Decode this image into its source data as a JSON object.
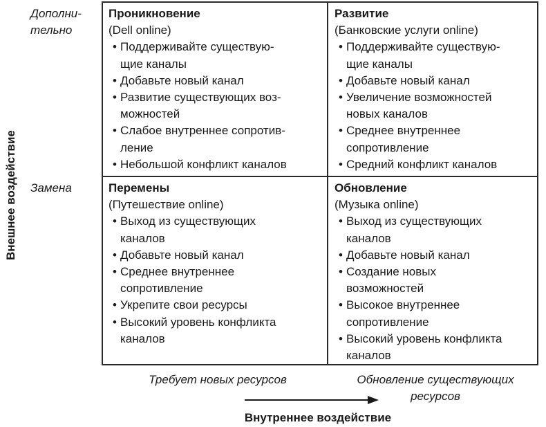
{
  "y_axis_label": "Внешнее воздействие",
  "x_axis_label": "Внутреннее воздействие",
  "row_labels": [
    {
      "lines": [
        "Дополни-",
        "тельно"
      ]
    },
    {
      "lines": [
        "Замена"
      ]
    }
  ],
  "column_labels": [
    {
      "lines": [
        "Требует новых ресурсов"
      ]
    },
    {
      "lines": [
        "Обновление существующих",
        "ресурсов"
      ]
    }
  ],
  "cells": [
    {
      "title": "Проникновение",
      "subtitle": "(Dell online)",
      "items": [
        [
          "Поддерживайте существую-",
          "щие каналы"
        ],
        [
          "Добавьте новый канал"
        ],
        [
          "Развитие существующих воз-",
          "можностей"
        ],
        [
          "Слабое внутреннее сопротив-",
          "ление"
        ],
        [
          "Небольшой конфликт каналов"
        ]
      ]
    },
    {
      "title": "Развитие",
      "subtitle": "(Банковские услуги online)",
      "items": [
        [
          "Поддерживайте существую-",
          "щие каналы"
        ],
        [
          "Добавьте новый канал"
        ],
        [
          "Увеличение возможностей",
          "новых каналов"
        ],
        [
          "Среднее внутреннее",
          "сопротивление"
        ],
        [
          "Средний конфликт каналов"
        ]
      ]
    },
    {
      "title": "Перемены",
      "subtitle": "(Путешествие online)",
      "items": [
        [
          "Выход из существующих",
          "каналов"
        ],
        [
          "Добавьте новый канал"
        ],
        [
          "Среднее внутреннее",
          "сопротивление"
        ],
        [
          "Укрепите свои ресурсы"
        ],
        [
          "Высокий уровень конфликта",
          "каналов"
        ]
      ]
    },
    {
      "title": "Обновление",
      "subtitle": "(Музыка online)",
      "items": [
        [
          "Выход из существующих",
          "каналов"
        ],
        [
          "Добавьте новый канал"
        ],
        [
          "Создание новых",
          "возможностей"
        ],
        [
          "Высокое внутреннее",
          "сопротивление"
        ],
        [
          "Высокий уровень конфликта",
          "каналов"
        ]
      ]
    }
  ],
  "bullet": "•"
}
